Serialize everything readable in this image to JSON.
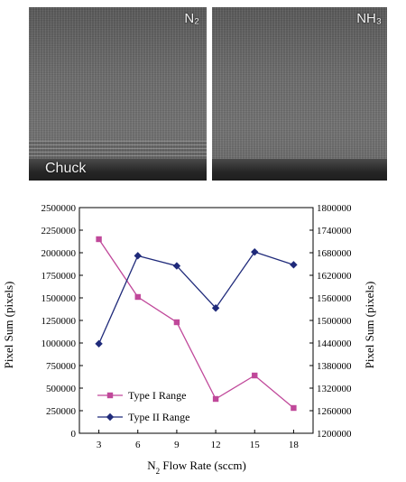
{
  "images": {
    "left_label": "N₂",
    "right_label": "NH₃",
    "chuck_label": "Chuck"
  },
  "colors": {
    "type1": "#c0489a",
    "type2": "#1f2a7a"
  },
  "chart_data": {
    "type": "line",
    "title": "",
    "x": [
      3,
      6,
      9,
      12,
      15,
      18
    ],
    "xlabel": "N2 Flow Rate (sccm)",
    "xticks": [
      "3",
      "6",
      "9",
      "12",
      "15",
      "18"
    ],
    "ylabel": "Pixel Sum (pixels)",
    "ylim": [
      0,
      2500000
    ],
    "yticks": [
      "0",
      "250000",
      "500000",
      "750000",
      "1000000",
      "1250000",
      "1500000",
      "1750000",
      "2000000",
      "2250000",
      "2500000"
    ],
    "y2label": "Pixel Sum (pixels)",
    "y2lim": [
      1200000,
      1800000
    ],
    "y2ticks": [
      "1200000",
      "1260000",
      "1320000",
      "1380000",
      "1440000",
      "1500000",
      "1560000",
      "1620000",
      "1680000",
      "1740000",
      "1800000"
    ],
    "legend_position": "lower-left",
    "grid": false,
    "series": [
      {
        "name": "Type I Range",
        "axis": "left",
        "marker": "square",
        "values": [
          2150000,
          1510000,
          1230000,
          380000,
          640000,
          280000
        ]
      },
      {
        "name": "Type II Range",
        "axis": "right",
        "marker": "diamond",
        "values": [
          1438000,
          1672000,
          1645000,
          1533000,
          1682000,
          1648000
        ]
      }
    ]
  }
}
